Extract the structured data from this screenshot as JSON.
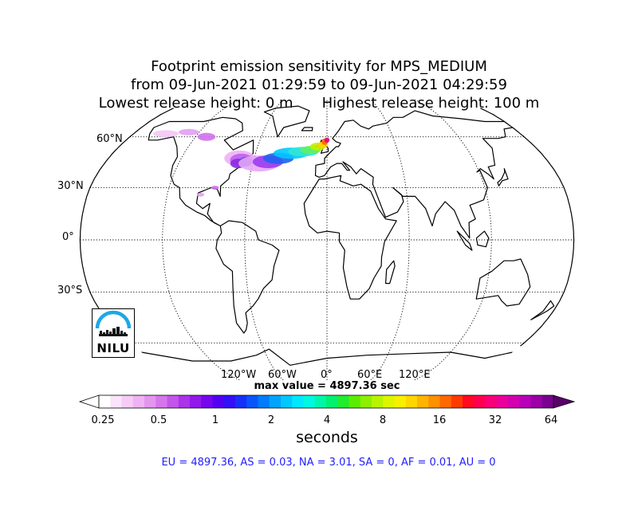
{
  "title": {
    "line1": "Footprint emission sensitivity for MPS_MEDIUM",
    "line2": "from 09-Jun-2021 01:29:59 to 09-Jun-2021 04:29:59",
    "line3a": "Lowest release height: 0 m",
    "line3b": "Highest release height: 100 m"
  },
  "map": {
    "projection": "Robinson",
    "lat_labels": [
      "60°N",
      "30°N",
      "0°",
      "30°S"
    ],
    "lon_labels": [
      "120°W",
      "60°W",
      "0°",
      "60°E",
      "120°E"
    ]
  },
  "max_value": "max value = 4897.36 sec",
  "colorbar": {
    "ticks": [
      "0.25",
      "0.5",
      "1",
      "2",
      "4",
      "8",
      "16",
      "32",
      "64"
    ],
    "units": "seconds",
    "extend": "both"
  },
  "regions_line": "EU = 4897.36,  AS = 0.03,  NA = 3.01,  SA = 0,  AF = 0.01,  AU = 0",
  "logo": {
    "text": "NILU"
  }
}
